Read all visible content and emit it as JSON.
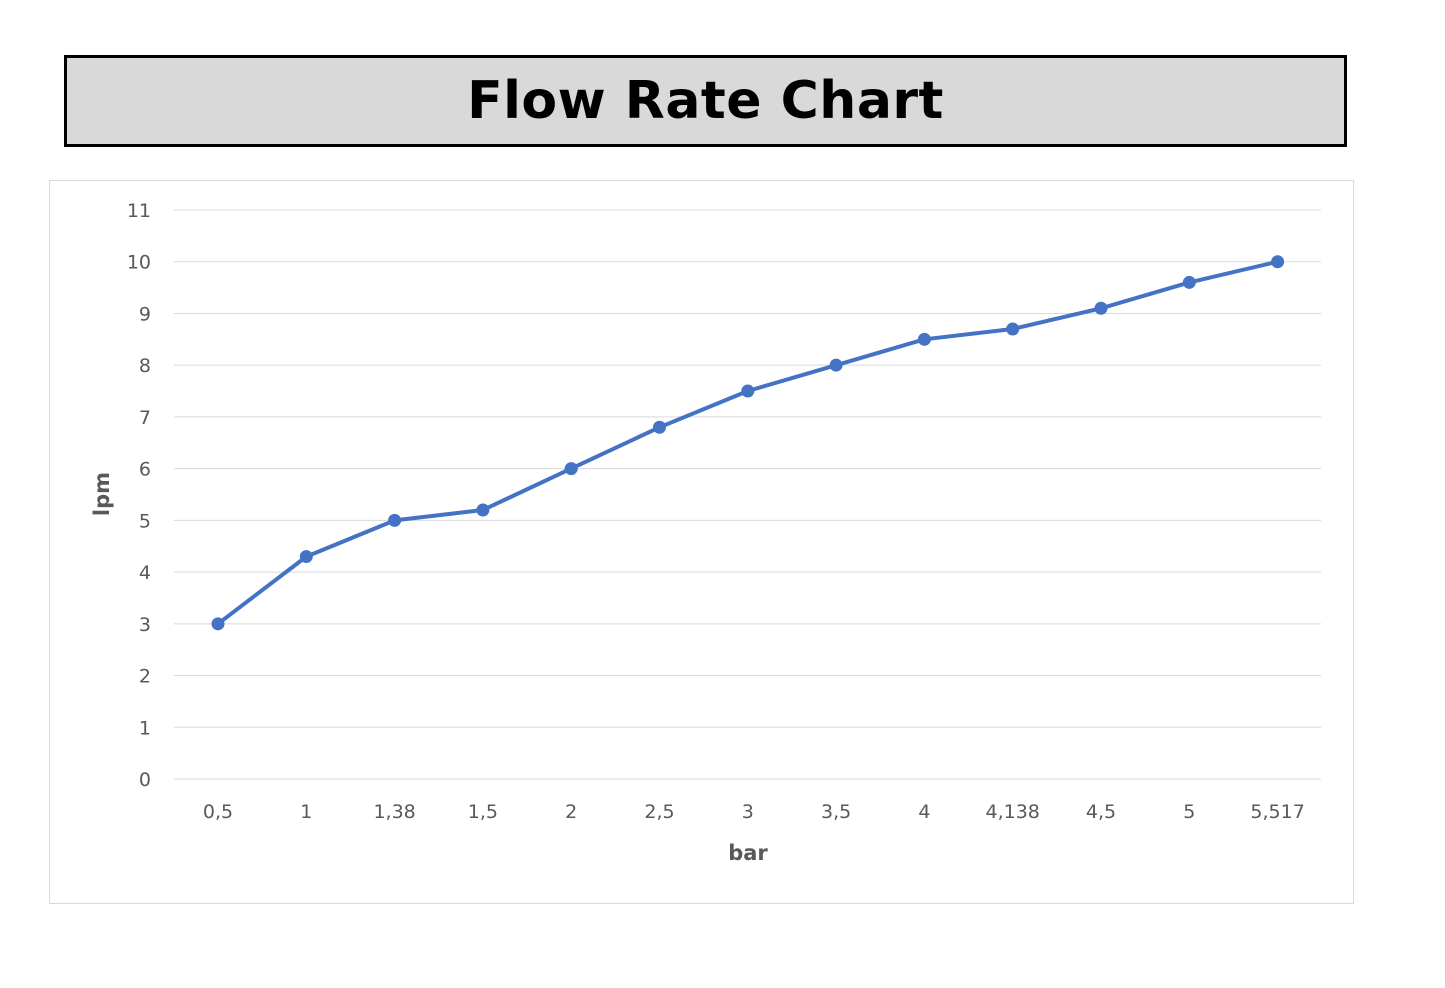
{
  "header": {
    "title": "Flow Rate Chart"
  },
  "chart_data": {
    "type": "line",
    "categories": [
      "0,5",
      "1",
      "1,38",
      "1,5",
      "2",
      "2,5",
      "3",
      "3,5",
      "4",
      "4,138",
      "4,5",
      "5",
      "5,517"
    ],
    "series": [
      {
        "values": [
          3,
          4.3,
          5,
          5.2,
          6,
          6.8,
          7.5,
          8,
          8.5,
          8.7,
          9.1,
          9.6,
          10
        ]
      }
    ],
    "title": "",
    "xlabel": "bar",
    "ylabel": "lpm",
    "ylim": [
      0,
      11
    ],
    "yticks": [
      "0",
      "1",
      "2",
      "3",
      "4",
      "5",
      "6",
      "7",
      "8",
      "9",
      "10",
      "11"
    ],
    "grid": true,
    "legend": "none",
    "colors": {
      "line": "#4472c4",
      "grid": "#d9d9d9",
      "text": "#595959"
    }
  }
}
